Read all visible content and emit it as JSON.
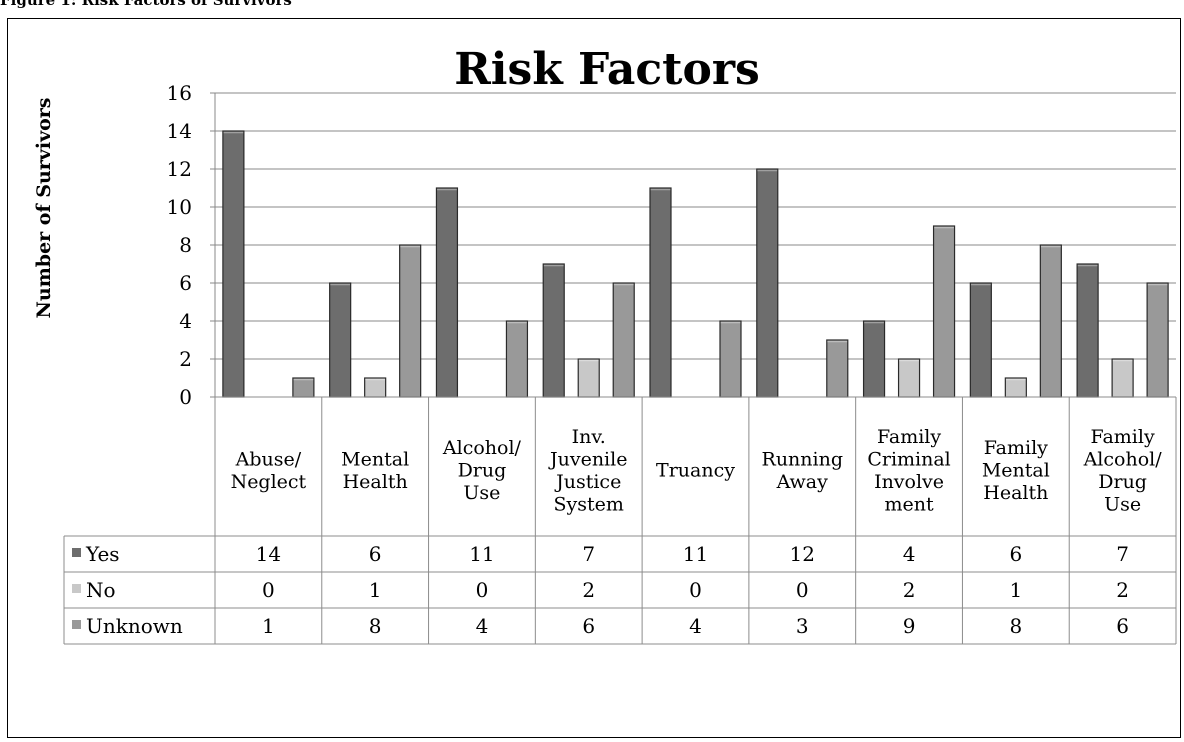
{
  "caption": "Figure 1: Risk Factors of Survivors",
  "chart_data": {
    "type": "bar",
    "title": "Risk Factors",
    "ylabel": "Number of Survivors",
    "xlabel": "",
    "ylim": [
      0,
      16
    ],
    "yticks": [
      0,
      2,
      4,
      6,
      8,
      10,
      12,
      14,
      16
    ],
    "grid": true,
    "legend": "data-table",
    "categories": [
      [
        "Abuse/",
        "Neglect"
      ],
      [
        "Mental",
        "Health"
      ],
      [
        "Alcohol/",
        "Drug",
        "Use"
      ],
      [
        "Inv.",
        "Juvenile",
        "Justice",
        "System"
      ],
      [
        "Truancy"
      ],
      [
        "Running",
        "Away"
      ],
      [
        "Family",
        "Criminal",
        "Involve",
        "ment"
      ],
      [
        "Family",
        "Mental",
        "Health"
      ],
      [
        "Family",
        "Alcohol/",
        "Drug",
        "Use"
      ]
    ],
    "series": [
      {
        "name": "Yes",
        "color": "#6d6d6d",
        "values": [
          14,
          6,
          11,
          7,
          11,
          12,
          4,
          6,
          7
        ]
      },
      {
        "name": "No",
        "color": "#c8c8c8",
        "values": [
          0,
          1,
          0,
          2,
          0,
          0,
          2,
          1,
          2
        ]
      },
      {
        "name": "Unknown",
        "color": "#999999",
        "values": [
          1,
          8,
          4,
          6,
          4,
          3,
          9,
          8,
          6
        ]
      }
    ]
  }
}
